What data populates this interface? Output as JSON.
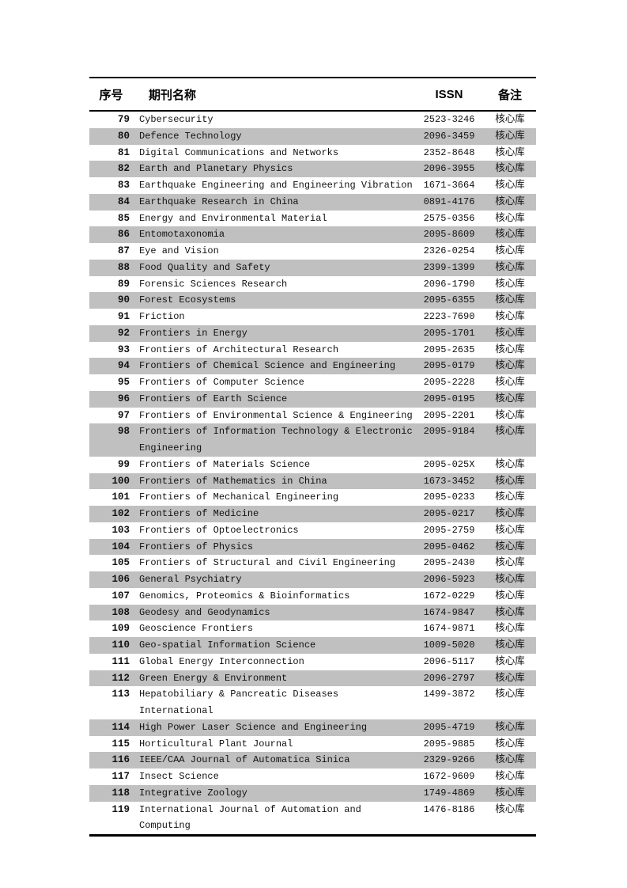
{
  "table": {
    "headers": {
      "num": "序号",
      "name": "期刊名称",
      "issn": "ISSN",
      "note": "备注"
    },
    "colors": {
      "stripe": "#c0c0c0",
      "border": "#000000",
      "background": "#ffffff"
    },
    "rows": [
      {
        "num": "79",
        "name": "Cybersecurity",
        "issn": "2523-3246",
        "note": "核心库"
      },
      {
        "num": "80",
        "name": "Defence Technology",
        "issn": "2096-3459",
        "note": "核心库"
      },
      {
        "num": "81",
        "name": "Digital Communications and Networks",
        "issn": "2352-8648",
        "note": "核心库"
      },
      {
        "num": "82",
        "name": "Earth and Planetary Physics",
        "issn": "2096-3955",
        "note": "核心库"
      },
      {
        "num": "83",
        "name": "Earthquake Engineering and Engineering Vibration",
        "issn": "1671-3664",
        "note": "核心库"
      },
      {
        "num": "84",
        "name": "Earthquake Research in China",
        "issn": "0891-4176",
        "note": "核心库"
      },
      {
        "num": "85",
        "name": "Energy and Environmental Material",
        "issn": "2575-0356",
        "note": "核心库"
      },
      {
        "num": "86",
        "name": "Entomotaxonomia",
        "issn": "2095-8609",
        "note": "核心库"
      },
      {
        "num": "87",
        "name": "Eye and Vision",
        "issn": "2326-0254",
        "note": "核心库"
      },
      {
        "num": "88",
        "name": "Food Quality and Safety",
        "issn": "2399-1399",
        "note": "核心库"
      },
      {
        "num": "89",
        "name": "Forensic Sciences Research",
        "issn": "2096-1790",
        "note": "核心库"
      },
      {
        "num": "90",
        "name": "Forest Ecosystems",
        "issn": "2095-6355",
        "note": "核心库"
      },
      {
        "num": "91",
        "name": "Friction",
        "issn": "2223-7690",
        "note": "核心库"
      },
      {
        "num": "92",
        "name": "Frontiers in Energy",
        "issn": "2095-1701",
        "note": "核心库"
      },
      {
        "num": "93",
        "name": "Frontiers of Architectural Research",
        "issn": "2095-2635",
        "note": "核心库"
      },
      {
        "num": "94",
        "name": "Frontiers of Chemical Science and Engineering",
        "issn": "2095-0179",
        "note": "核心库"
      },
      {
        "num": "95",
        "name": "Frontiers of Computer Science",
        "issn": "2095-2228",
        "note": "核心库"
      },
      {
        "num": "96",
        "name": "Frontiers of Earth Science",
        "issn": "2095-0195",
        "note": "核心库"
      },
      {
        "num": "97",
        "name": "Frontiers of Environmental Science & Engineering",
        "issn": "2095-2201",
        "note": "核心库"
      },
      {
        "num": "98",
        "name": "Frontiers of Information Technology & Electronic Engineering",
        "issn": "2095-9184",
        "note": "核心库"
      },
      {
        "num": "99",
        "name": "Frontiers of Materials Science",
        "issn": "2095-025X",
        "note": "核心库"
      },
      {
        "num": "100",
        "name": "Frontiers of Mathematics in China",
        "issn": "1673-3452",
        "note": "核心库"
      },
      {
        "num": "101",
        "name": "Frontiers of Mechanical Engineering",
        "issn": "2095-0233",
        "note": "核心库"
      },
      {
        "num": "102",
        "name": "Frontiers of Medicine",
        "issn": "2095-0217",
        "note": "核心库"
      },
      {
        "num": "103",
        "name": "Frontiers of Optoelectronics",
        "issn": "2095-2759",
        "note": "核心库"
      },
      {
        "num": "104",
        "name": "Frontiers of Physics",
        "issn": "2095-0462",
        "note": "核心库"
      },
      {
        "num": "105",
        "name": "Frontiers of Structural and Civil Engineering",
        "issn": "2095-2430",
        "note": "核心库"
      },
      {
        "num": "106",
        "name": "General Psychiatry",
        "issn": "2096-5923",
        "note": "核心库"
      },
      {
        "num": "107",
        "name": "Genomics, Proteomics & Bioinformatics",
        "issn": "1672-0229",
        "note": "核心库"
      },
      {
        "num": "108",
        "name": "Geodesy and Geodynamics",
        "issn": "1674-9847",
        "note": "核心库"
      },
      {
        "num": "109",
        "name": "Geoscience Frontiers",
        "issn": "1674-9871",
        "note": "核心库"
      },
      {
        "num": "110",
        "name": "Geo-spatial Information Science",
        "issn": "1009-5020",
        "note": "核心库"
      },
      {
        "num": "111",
        "name": "Global Energy Interconnection",
        "issn": "2096-5117",
        "note": "核心库"
      },
      {
        "num": "112",
        "name": "Green Energy & Environment",
        "issn": "2096-2797",
        "note": "核心库"
      },
      {
        "num": "113",
        "name": "Hepatobiliary & Pancreatic Diseases International",
        "issn": "1499-3872",
        "note": "核心库"
      },
      {
        "num": "114",
        "name": "High Power Laser Science and Engineering",
        "issn": "2095-4719",
        "note": "核心库"
      },
      {
        "num": "115",
        "name": "Horticultural Plant Journal",
        "issn": "2095-9885",
        "note": "核心库"
      },
      {
        "num": "116",
        "name": "IEEE/CAA Journal of Automatica Sinica",
        "issn": "2329-9266",
        "note": "核心库"
      },
      {
        "num": "117",
        "name": "Insect Science",
        "issn": "1672-9609",
        "note": "核心库"
      },
      {
        "num": "118",
        "name": "Integrative Zoology",
        "issn": "1749-4869",
        "note": "核心库"
      },
      {
        "num": "119",
        "name": "International Journal of Automation and Computing",
        "issn": "1476-8186",
        "note": "核心库"
      }
    ]
  }
}
